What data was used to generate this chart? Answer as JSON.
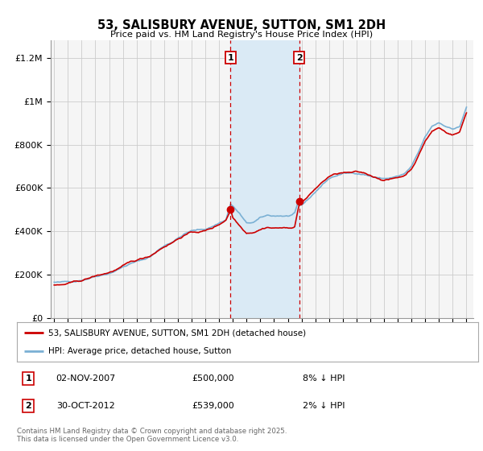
{
  "title": "53, SALISBURY AVENUE, SUTTON, SM1 2DH",
  "subtitle": "Price paid vs. HM Land Registry's House Price Index (HPI)",
  "ylabel_ticks": [
    "£0",
    "£200K",
    "£400K",
    "£600K",
    "£800K",
    "£1M",
    "£1.2M"
  ],
  "ytick_values": [
    0,
    200000,
    400000,
    600000,
    800000,
    1000000,
    1200000
  ],
  "ylim": [
    0,
    1280000
  ],
  "xlim_start": 1994.75,
  "xlim_end": 2025.5,
  "marker1_x": 2007.84,
  "marker1_y": 500000,
  "marker2_x": 2012.83,
  "marker2_y": 539000,
  "line1_color": "#cc0000",
  "line2_color": "#7ab0d4",
  "shade_color": "#daeaf5",
  "grid_color": "#cccccc",
  "background_color": "#f5f5f5",
  "legend_line1": "53, SALISBURY AVENUE, SUTTON, SM1 2DH (detached house)",
  "legend_line2": "HPI: Average price, detached house, Sutton",
  "marker1_date": "02-NOV-2007",
  "marker1_price": "£500,000",
  "marker1_hpi": "8% ↓ HPI",
  "marker2_date": "30-OCT-2012",
  "marker2_price": "£539,000",
  "marker2_hpi": "2% ↓ HPI",
  "footer": "Contains HM Land Registry data © Crown copyright and database right 2025.\nThis data is licensed under the Open Government Licence v3.0."
}
